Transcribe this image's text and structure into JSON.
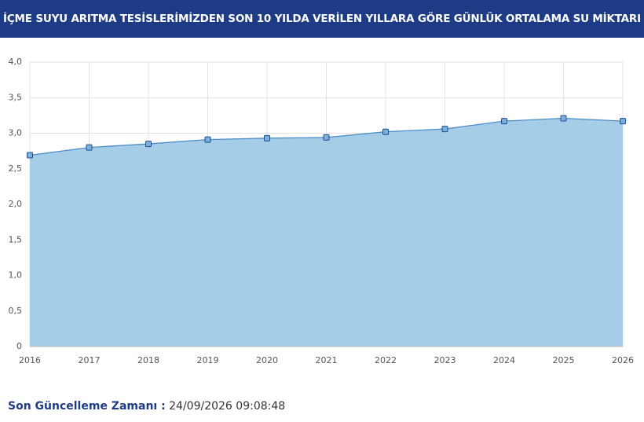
{
  "header": {
    "title": "İÇME SUYU ARITMA TESİSLERİMİZDEN SON 10 YILDA VERİLEN YILLARA GÖRE GÜNLÜK ORTALAMA SU MİKTARI"
  },
  "chart_data": {
    "type": "area",
    "categories": [
      "2016",
      "2017",
      "2018",
      "2019",
      "2020",
      "2021",
      "2022",
      "2023",
      "2024",
      "2025",
      "2026"
    ],
    "values": [
      2.69,
      2.8,
      2.85,
      2.91,
      2.93,
      2.94,
      3.02,
      3.06,
      3.17,
      3.21,
      3.17
    ],
    "color": "#4f8fc9",
    "fill": "#a6cde8",
    "ylim": [
      0,
      4
    ],
    "yticks": [
      0,
      {
        "value": 0.5,
        "label": "0,5"
      },
      {
        "value": 1,
        "label": "1,0"
      },
      {
        "value": 1.5,
        "label": "1,5"
      },
      {
        "value": 2,
        "label": "2,0"
      },
      {
        "value": 2.5,
        "label": "2,5"
      },
      {
        "value": 3,
        "label": "3,0"
      },
      {
        "value": 3.5,
        "label": "3,5"
      },
      {
        "value": 4,
        "label": "4,0"
      }
    ],
    "grid": true
  },
  "footer": {
    "label": "Son Güncelleme Zamanı :",
    "value": "24/09/2026 09:08:48"
  }
}
